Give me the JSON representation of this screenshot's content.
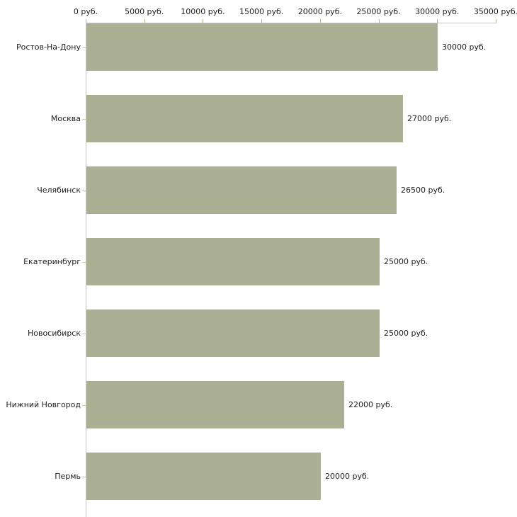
{
  "chart_data": {
    "type": "bar",
    "orientation": "horizontal",
    "title": "",
    "categories": [
      "Ростов-На-Дону",
      "Москва",
      "Челябинск",
      "Екатеринбург",
      "Новосибирск",
      "Нижний Новгород",
      "Пермь"
    ],
    "values": [
      30000,
      27000,
      26500,
      25000,
      25000,
      22000,
      20000
    ],
    "value_labels": [
      "30000 руб.",
      "27000 руб.",
      "26500 руб.",
      "25000 руб.",
      "25000 руб.",
      "22000 руб.",
      "20000 руб."
    ],
    "x_axis": {
      "position": "top",
      "range": [
        0,
        35000
      ],
      "ticks": [
        0,
        5000,
        10000,
        15000,
        20000,
        25000,
        30000,
        35000
      ],
      "tick_labels": [
        "0 руб.",
        "5000 руб.",
        "10000 руб.",
        "15000 руб.",
        "20000 руб.",
        "25000 руб.",
        "30000 руб.",
        "35000 руб."
      ],
      "unit": "руб."
    },
    "ylabel": "",
    "xlabel": "",
    "legend": "none",
    "grid": false,
    "colors": {
      "bar": "#abb095",
      "axis_line": "#c8c8c8",
      "axis_tick": "#b2ae8e",
      "category_tick": "#d2cbb4",
      "text": "#1f1f1f",
      "background": "#ffffff"
    }
  }
}
